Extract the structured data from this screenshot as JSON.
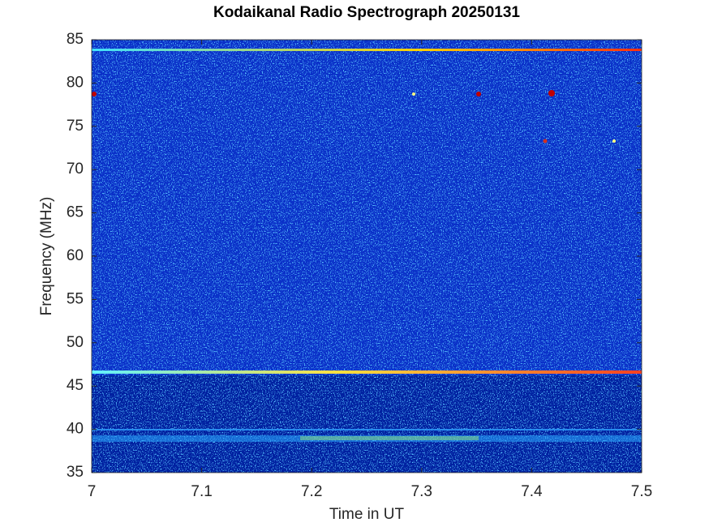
{
  "chart_data": {
    "type": "heatmap",
    "title": "Kodaikanal Radio Spectrograph  20250131",
    "x_label": "Time in UT",
    "y_label": "Frequency (MHz)",
    "xlim": [
      7,
      7.5
    ],
    "xticks": [
      7,
      7.1,
      7.2,
      7.3,
      7.4,
      7.5
    ],
    "ylim": [
      35,
      85
    ],
    "yticks": [
      35,
      40,
      45,
      50,
      55,
      60,
      65,
      70,
      75,
      80,
      85
    ]
  }
}
